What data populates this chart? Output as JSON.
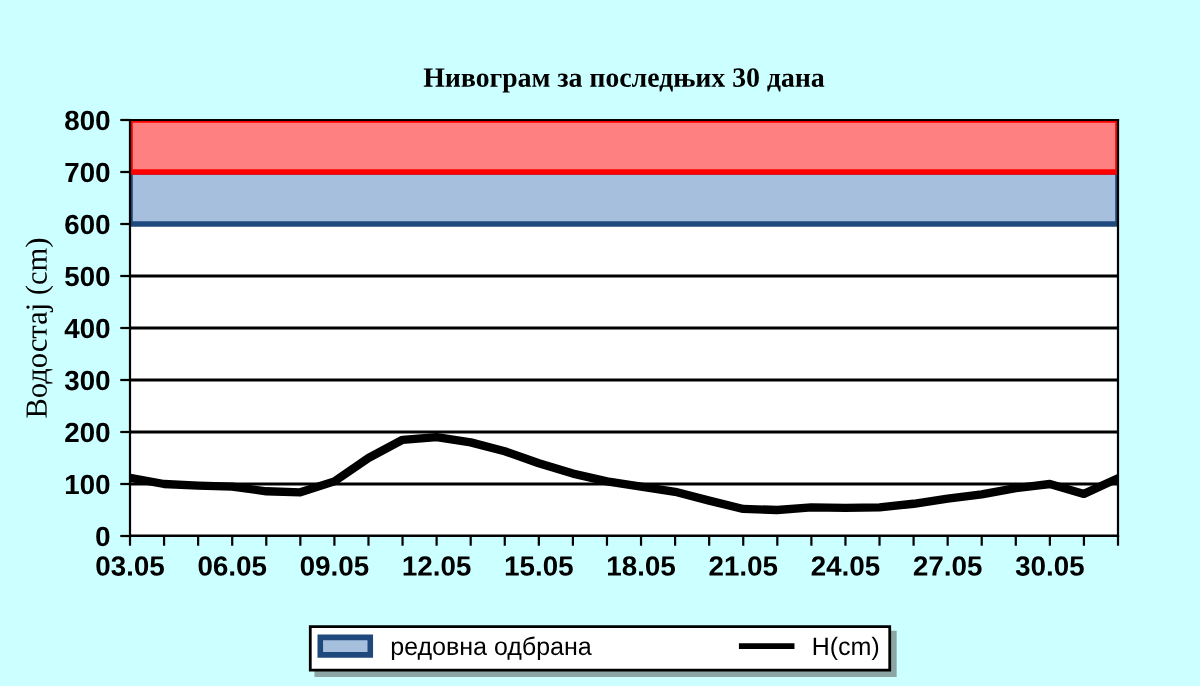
{
  "chart_data": {
    "type": "line",
    "title": "Нивограм за последњих 30 дана",
    "ylabel": "Водостај (cm)",
    "categories": [
      "03.05",
      null,
      null,
      "06.05",
      null,
      null,
      "09.05",
      null,
      null,
      "12.05",
      null,
      null,
      "15.05",
      null,
      null,
      "18.05",
      null,
      null,
      "21.05",
      null,
      null,
      "24.05",
      null,
      null,
      "27.05",
      null,
      null,
      "30.05",
      null,
      null
    ],
    "series": [
      {
        "name": "H(cm)",
        "color": "#000000",
        "values": [
          112,
          100,
          97,
          95,
          86,
          84,
          105,
          150,
          185,
          190,
          180,
          163,
          140,
          120,
          105,
          95,
          85,
          68,
          52,
          50,
          55,
          54,
          55,
          62,
          72,
          80,
          92,
          100,
          81,
          111
        ]
      }
    ],
    "ylim": [
      0,
      800
    ],
    "yticks": [
      0,
      100,
      200,
      300,
      400,
      500,
      600,
      700,
      800
    ],
    "grid": "y",
    "legend": "bottom",
    "marker": "none",
    "line_style": "solid",
    "bands": [
      {
        "axis": "y",
        "from": 600,
        "to": 700,
        "label": "редовна одбрана",
        "color": "#a6bfdd"
      },
      {
        "axis": "y",
        "from": 700,
        "to": 800,
        "color": "#ff8080"
      }
    ]
  }
}
